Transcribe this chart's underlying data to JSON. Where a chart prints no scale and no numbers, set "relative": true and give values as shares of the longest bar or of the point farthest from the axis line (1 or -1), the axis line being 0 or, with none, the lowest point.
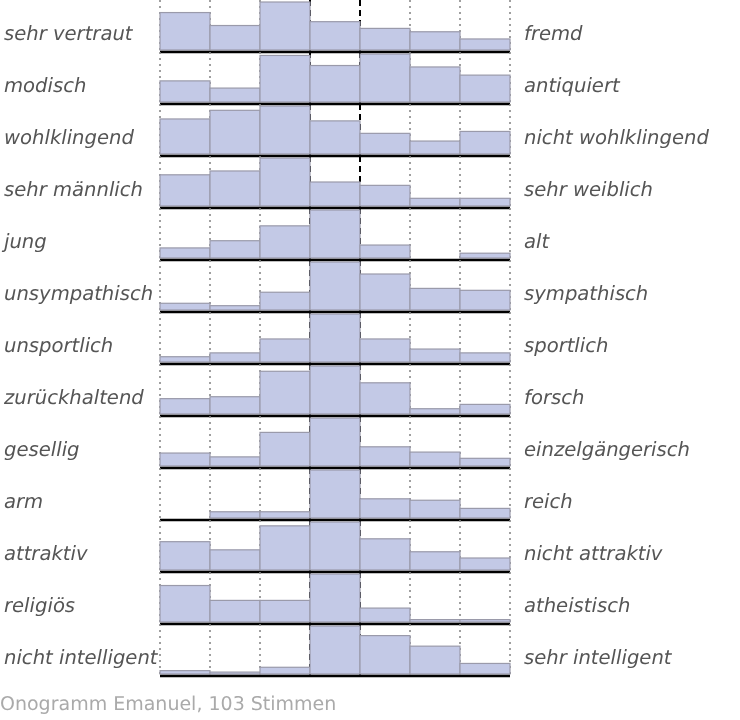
{
  "chart_data": [
    {
      "type": "bar",
      "relative": true,
      "ylabel": "sehr vertraut",
      "y2label": "fremd",
      "categories": [
        null,
        null,
        null,
        null,
        null,
        null,
        null
      ],
      "values": [
        0.78,
        0.51,
        1,
        0.59,
        0.45,
        0.38,
        0.23
      ],
      "color": "#c3c9e6",
      "grid": "x"
    },
    {
      "type": "bar",
      "relative": true,
      "ylabel": "modisch",
      "y2label": "antiquiert",
      "categories": [
        null,
        null,
        null,
        null,
        null,
        null,
        null
      ],
      "values": [
        0.44,
        0.29,
        0.97,
        0.76,
        1,
        0.73,
        0.56
      ],
      "color": "#c3c9e6",
      "grid": "x"
    },
    {
      "type": "bar",
      "relative": true,
      "ylabel": "wohlklingend",
      "y2label": "nicht wohlklingend",
      "categories": [
        null,
        null,
        null,
        null,
        null,
        null,
        null
      ],
      "values": [
        0.73,
        0.91,
        1,
        0.69,
        0.43,
        0.27,
        0.47
      ],
      "color": "#c3c9e6",
      "grid": "x"
    },
    {
      "type": "bar",
      "relative": true,
      "ylabel": "sehr männlich",
      "y2label": "sehr weiblich",
      "categories": [
        null,
        null,
        null,
        null,
        null,
        null,
        null
      ],
      "values": [
        0.65,
        0.73,
        1,
        0.5,
        0.43,
        0.16,
        0.16
      ],
      "color": "#c3c9e6",
      "grid": "x"
    },
    {
      "type": "bar",
      "relative": true,
      "ylabel": "jung",
      "y2label": "alt",
      "categories": [
        null,
        null,
        null,
        null,
        null,
        null,
        null
      ],
      "values": [
        0.21,
        0.36,
        0.67,
        1,
        0.27,
        0,
        0.1
      ],
      "color": "#c3c9e6",
      "grid": "x"
    },
    {
      "type": "bar",
      "relative": true,
      "ylabel": "unsympathisch",
      "y2label": "sympathisch",
      "categories": [
        null,
        null,
        null,
        null,
        null,
        null,
        null
      ],
      "values": [
        0.14,
        0.09,
        0.37,
        1,
        0.75,
        0.45,
        0.41
      ],
      "color": "#c3c9e6",
      "grid": "x"
    },
    {
      "type": "bar",
      "relative": true,
      "ylabel": "unsportlich",
      "y2label": "sportlich",
      "categories": [
        null,
        null,
        null,
        null,
        null,
        null,
        null
      ],
      "values": [
        0.11,
        0.19,
        0.48,
        1,
        0.48,
        0.27,
        0.19
      ],
      "color": "#c3c9e6",
      "grid": "x"
    },
    {
      "type": "bar",
      "relative": true,
      "ylabel": "zurückhaltend",
      "y2label": "forsch",
      "categories": [
        null,
        null,
        null,
        null,
        null,
        null,
        null
      ],
      "values": [
        0.32,
        0.36,
        0.89,
        1,
        0.65,
        0.11,
        0.2
      ],
      "color": "#c3c9e6",
      "grid": "x"
    },
    {
      "type": "bar",
      "relative": true,
      "ylabel": "gesellig",
      "y2label": "einzelgängerisch",
      "categories": [
        null,
        null,
        null,
        null,
        null,
        null,
        null
      ],
      "values": [
        0.27,
        0.19,
        0.7,
        1,
        0.4,
        0.29,
        0.16
      ],
      "color": "#c3c9e6",
      "grid": "x"
    },
    {
      "type": "bar",
      "relative": true,
      "ylabel": "arm",
      "y2label": "reich",
      "categories": [
        null,
        null,
        null,
        null,
        null,
        null,
        null
      ],
      "values": [
        0,
        0.13,
        0.13,
        1,
        0.4,
        0.37,
        0.2
      ],
      "color": "#c3c9e6",
      "grid": "x"
    },
    {
      "type": "bar",
      "relative": true,
      "ylabel": "attraktiv",
      "y2label": "nicht attraktiv",
      "categories": [
        null,
        null,
        null,
        null,
        null,
        null,
        null
      ],
      "values": [
        0.59,
        0.42,
        0.92,
        1,
        0.65,
        0.38,
        0.25
      ],
      "color": "#c3c9e6",
      "grid": "x"
    },
    {
      "type": "bar",
      "relative": true,
      "ylabel": "religiös",
      "y2label": "atheistisch",
      "categories": [
        null,
        null,
        null,
        null,
        null,
        null,
        null
      ],
      "values": [
        0.76,
        0.45,
        0.45,
        1,
        0.29,
        0.05,
        0.05
      ],
      "color": "#c3c9e6",
      "grid": "x"
    },
    {
      "type": "bar",
      "relative": true,
      "ylabel": "nicht intelligent",
      "y2label": "sehr intelligent",
      "categories": [
        null,
        null,
        null,
        null,
        null,
        null,
        null
      ],
      "values": [
        0.07,
        0.04,
        0.14,
        1,
        0.8,
        0.58,
        0.22
      ],
      "color": "#c3c9e6",
      "grid": "x",
      "annotations": [
        "Onogramm Emanuel, 103 Stimmen"
      ]
    }
  ]
}
